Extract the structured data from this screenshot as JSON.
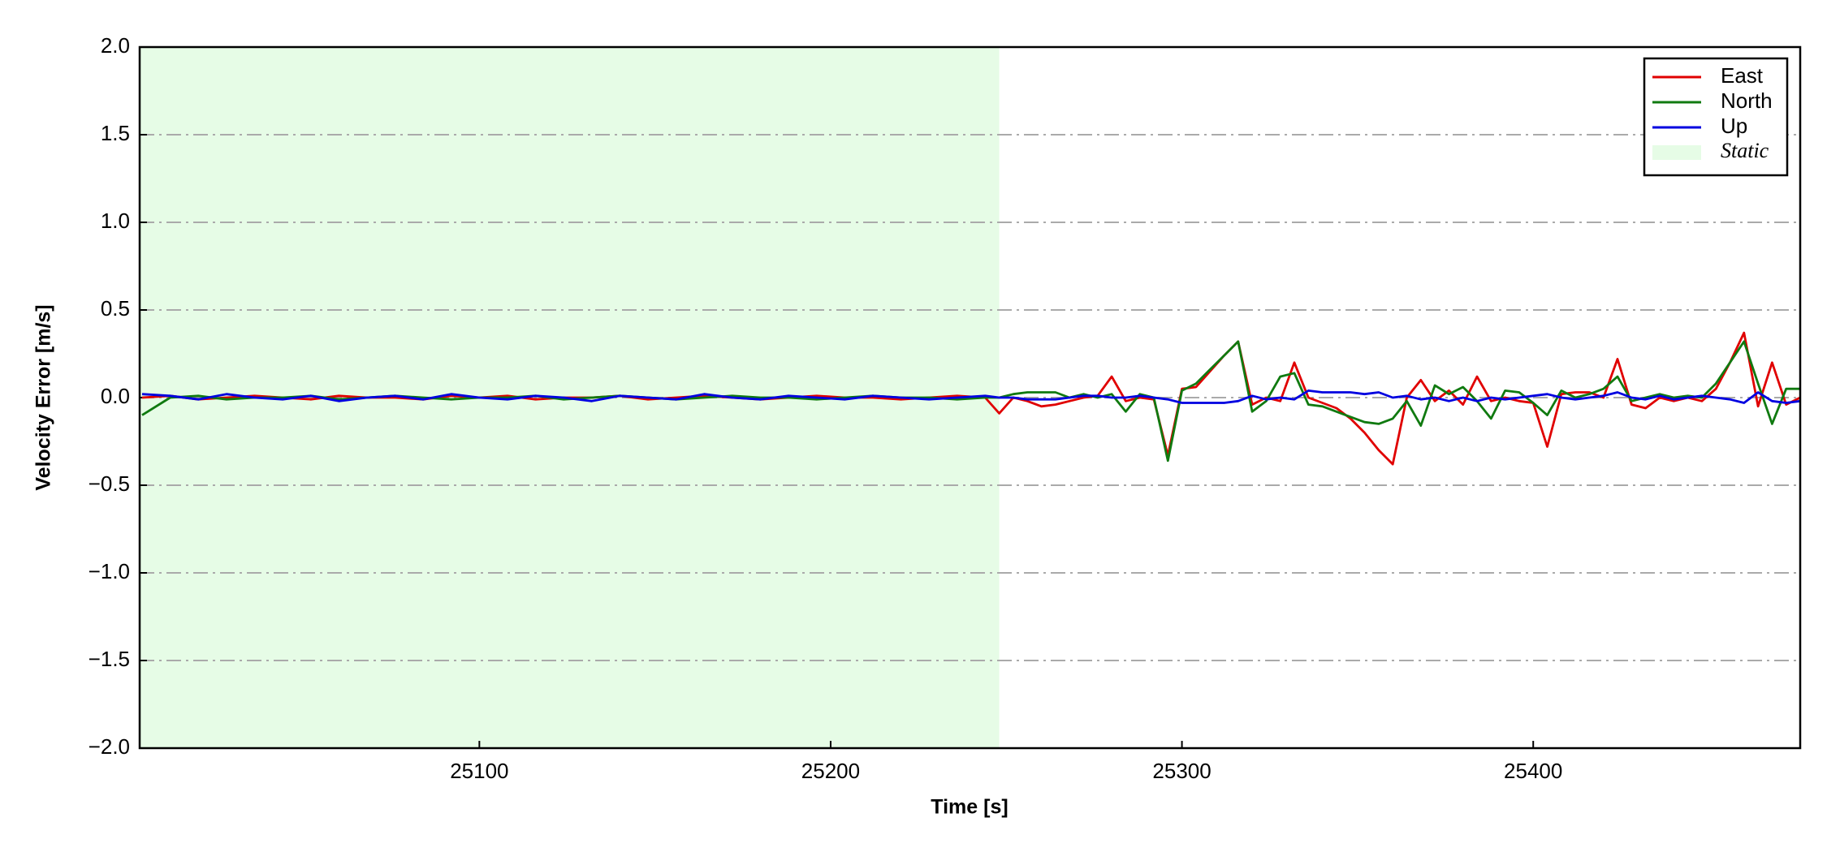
{
  "chart_data": {
    "type": "line",
    "y_label": "Velocity Error [m/s]",
    "x_label": "Time [s]",
    "xlim": [
      25003.3,
      25476
    ],
    "ylim": [
      -2,
      2
    ],
    "xticks": [
      25100,
      25200,
      25300,
      25400
    ],
    "yticks": [
      {
        "value": -2,
        "label": "−2.0"
      },
      {
        "value": -1.5,
        "label": "−1.5"
      },
      {
        "value": -1,
        "label": "−1.0"
      },
      {
        "value": -0.5,
        "label": "−0.5"
      },
      {
        "value": 0,
        "label": "0.0"
      },
      {
        "value": 0.5,
        "label": "0.5"
      },
      {
        "value": 1,
        "label": "1.0"
      },
      {
        "value": 1.5,
        "label": "1.5"
      },
      {
        "value": 2,
        "label": "2.0"
      }
    ],
    "grid": true,
    "legend": "upper right",
    "shaded_region": {
      "name": "Static",
      "color": "#e6fce6",
      "x": [
        25003.3,
        25248
      ]
    },
    "x": [
      25004,
      25012,
      25020,
      25028,
      25036,
      25044,
      25052,
      25060,
      25068,
      25076,
      25084,
      25092,
      25100,
      25108,
      25116,
      25124,
      25132,
      25140,
      25148,
      25156,
      25164,
      25172,
      25180,
      25188,
      25196,
      25204,
      25212,
      25220,
      25228,
      25236,
      25244,
      25248,
      25252,
      25256,
      25260,
      25264,
      25268,
      25272,
      25276,
      25280,
      25284,
      25288,
      25292,
      25296,
      25300,
      25304,
      25308,
      25312,
      25316,
      25320,
      25324,
      25328,
      25332,
      25336,
      25340,
      25344,
      25348,
      25352,
      25356,
      25360,
      25364,
      25368,
      25372,
      25376,
      25380,
      25384,
      25388,
      25392,
      25396,
      25400,
      25404,
      25408,
      25412,
      25416,
      25420,
      25424,
      25428,
      25432,
      25436,
      25440,
      25444,
      25448,
      25452,
      25456,
      25460,
      25464,
      25468,
      25472,
      25476
    ],
    "series": [
      {
        "name": "East",
        "color": "#e00000",
        "values": [
          0.0,
          0.01,
          -0.01,
          0.0,
          0.01,
          0.0,
          -0.01,
          0.01,
          0.0,
          0.0,
          -0.01,
          0.01,
          0.0,
          0.01,
          -0.01,
          0.0,
          0.0,
          0.01,
          -0.01,
          0.0,
          0.01,
          0.0,
          -0.01,
          0.0,
          0.01,
          0.0,
          0.0,
          -0.01,
          0.0,
          0.01,
          0.0,
          -0.09,
          0.0,
          -0.02,
          -0.05,
          -0.04,
          -0.02,
          0.0,
          0.01,
          0.12,
          -0.02,
          0.0,
          -0.01,
          -0.33,
          0.05,
          0.06,
          0.15,
          0.24,
          0.32,
          -0.04,
          0.0,
          -0.02,
          0.2,
          0.0,
          -0.03,
          -0.06,
          -0.12,
          -0.2,
          -0.3,
          -0.38,
          0.0,
          0.1,
          -0.02,
          0.04,
          -0.04,
          0.12,
          -0.02,
          0.0,
          -0.02,
          -0.03,
          -0.28,
          0.02,
          0.03,
          0.03,
          0.0,
          0.22,
          -0.04,
          -0.06,
          0.0,
          -0.02,
          0.0,
          -0.02,
          0.05,
          0.2,
          0.37,
          -0.05,
          0.2,
          -0.04,
          0.0
        ]
      },
      {
        "name": "North",
        "color": "#107a10",
        "values": [
          -0.1,
          0.0,
          0.01,
          -0.01,
          0.0,
          0.0,
          0.01,
          -0.01,
          0.0,
          0.01,
          0.0,
          -0.01,
          0.0,
          0.0,
          0.01,
          -0.01,
          0.0,
          0.01,
          0.0,
          -0.01,
          0.0,
          0.01,
          0.0,
          0.0,
          -0.01,
          0.0,
          0.01,
          0.0,
          0.0,
          -0.01,
          0.0,
          0.0,
          0.02,
          0.03,
          0.03,
          0.03,
          0.0,
          0.02,
          0.0,
          0.02,
          -0.08,
          0.02,
          0.0,
          -0.36,
          0.04,
          0.08,
          0.16,
          0.24,
          0.32,
          -0.08,
          -0.02,
          0.12,
          0.14,
          -0.04,
          -0.05,
          -0.08,
          -0.11,
          -0.14,
          -0.15,
          -0.12,
          -0.02,
          -0.16,
          0.07,
          0.02,
          0.06,
          -0.02,
          -0.12,
          0.04,
          0.03,
          -0.03,
          -0.1,
          0.04,
          0.0,
          0.02,
          0.05,
          0.12,
          -0.02,
          0.0,
          0.02,
          0.0,
          0.01,
          0.0,
          0.08,
          0.2,
          0.32,
          0.08,
          -0.15,
          0.05,
          0.05
        ]
      },
      {
        "name": "Up",
        "color": "#0000e0",
        "values": [
          0.02,
          0.01,
          -0.01,
          0.02,
          0.0,
          -0.01,
          0.01,
          -0.02,
          0.0,
          0.01,
          -0.01,
          0.02,
          0.0,
          -0.01,
          0.01,
          0.0,
          -0.02,
          0.01,
          0.0,
          -0.01,
          0.02,
          0.0,
          -0.01,
          0.01,
          0.0,
          -0.01,
          0.01,
          0.0,
          -0.01,
          0.0,
          0.01,
          0.0,
          0.0,
          -0.01,
          -0.01,
          -0.01,
          0.0,
          0.01,
          0.01,
          0.0,
          0.0,
          0.01,
          0.0,
          -0.01,
          -0.03,
          -0.03,
          -0.03,
          -0.03,
          -0.02,
          0.01,
          -0.01,
          0.0,
          -0.01,
          0.04,
          0.03,
          0.03,
          0.03,
          0.02,
          0.03,
          0.0,
          0.01,
          -0.01,
          0.0,
          -0.02,
          0.0,
          -0.02,
          0.0,
          -0.01,
          0.0,
          0.01,
          0.02,
          0.0,
          -0.01,
          0.0,
          0.01,
          0.03,
          0.0,
          -0.01,
          0.01,
          -0.01,
          0.0,
          0.01,
          0.0,
          -0.01,
          -0.03,
          0.03,
          -0.02,
          -0.03,
          -0.02
        ]
      }
    ]
  }
}
